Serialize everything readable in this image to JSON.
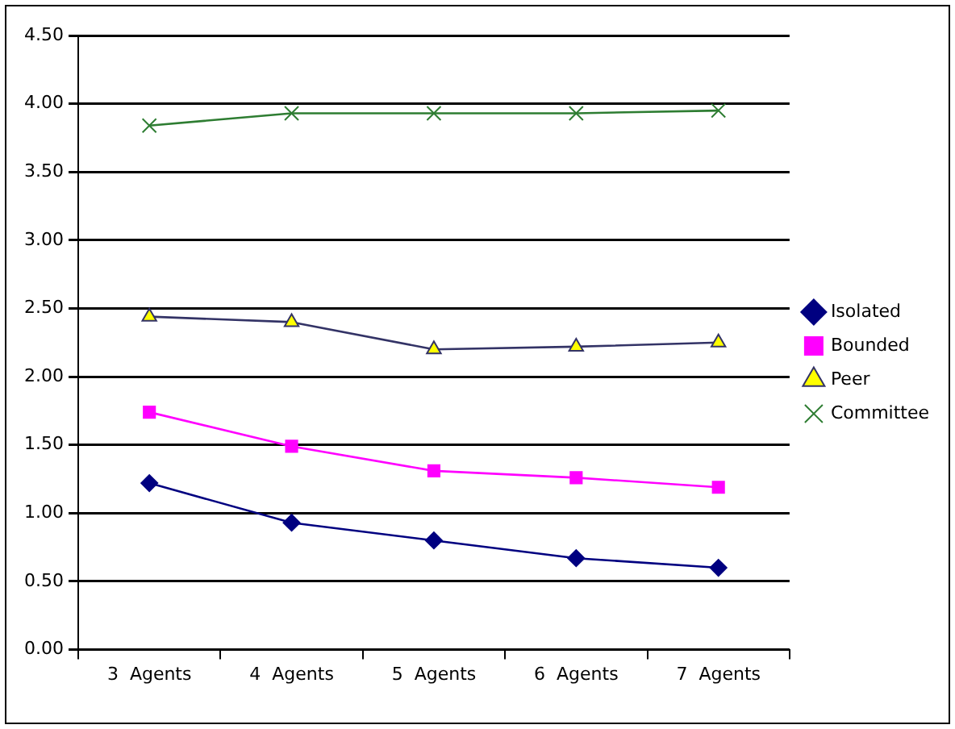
{
  "chart_data": {
    "type": "line",
    "categories": [
      "3  Agents",
      "4  Agents",
      "5  Agents",
      "6  Agents",
      "7  Agents"
    ],
    "series": [
      {
        "name": "Isolated",
        "color": "#000080",
        "marker": "diamond",
        "values": [
          1.22,
          0.93,
          0.8,
          0.67,
          0.6
        ]
      },
      {
        "name": "Bounded",
        "color": "#ff00ff",
        "marker": "square",
        "values": [
          1.74,
          1.49,
          1.31,
          1.26,
          1.19
        ]
      },
      {
        "name": "Peer",
        "color": "#333366",
        "colors": [
          "#ffff00",
          "#ffff00",
          "#ffff00",
          "#ffff00",
          "#ffff00"
        ],
        "marker": "triangle",
        "values": [
          2.44,
          2.4,
          2.2,
          2.22,
          2.25
        ]
      },
      {
        "name": "Committee",
        "color": "#2e7d32",
        "marker": "cross",
        "values": [
          3.84,
          3.93,
          3.93,
          3.93,
          3.95
        ]
      }
    ],
    "ylim": [
      0,
      4.5
    ],
    "yticks": [
      {
        "value": 0,
        "label": "0.00"
      },
      {
        "value": 0.5,
        "label": "0.50"
      },
      {
        "value": 1,
        "label": "1.00"
      },
      {
        "value": 1.5,
        "label": "1.50"
      },
      {
        "value": 2,
        "label": "2.00"
      },
      {
        "value": 2.5,
        "label": "2.50"
      },
      {
        "value": 3,
        "label": "3.00"
      },
      {
        "value": 3.5,
        "label": "3.50"
      },
      {
        "value": 4,
        "label": "4.00"
      },
      {
        "value": 4.5,
        "label": "4.50"
      }
    ],
    "grid": "y",
    "legend": "right",
    "line_style": "solid"
  }
}
